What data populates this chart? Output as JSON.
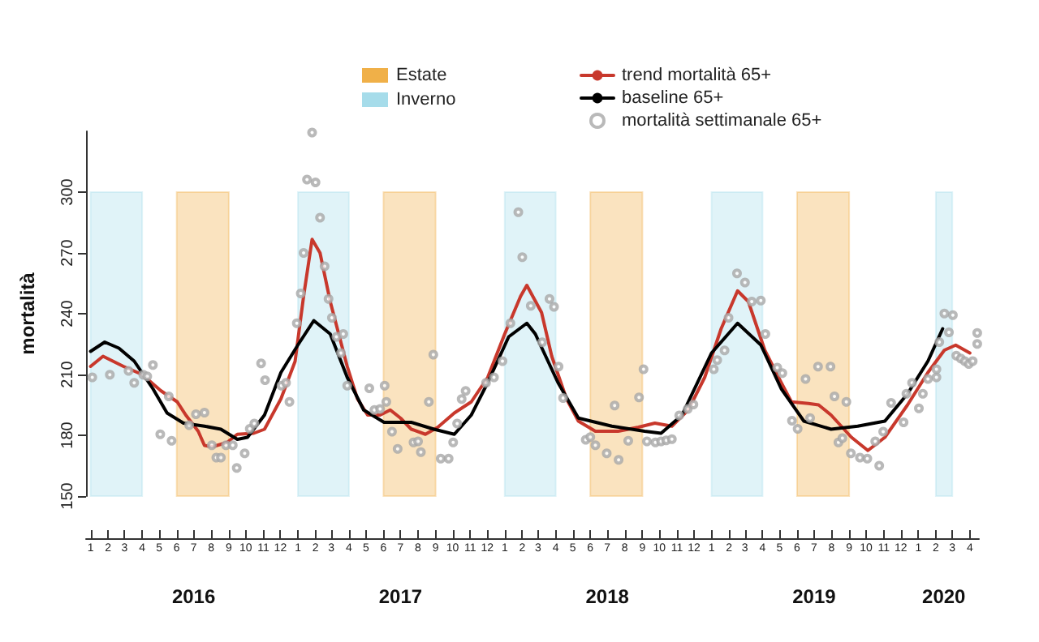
{
  "chart_data": {
    "type": "line",
    "ylabel": "mortalità",
    "xlim": [
      "2015-12-24",
      "2020-04-17"
    ],
    "ylim": [
      150,
      330
    ],
    "yticks": [
      150,
      180,
      210,
      240,
      270,
      300
    ],
    "xticks": [
      {
        "value": "2016-01-01",
        "label": "1"
      },
      {
        "value": "2016-02-01",
        "label": "2"
      },
      {
        "value": "2016-03-01",
        "label": "3"
      },
      {
        "value": "2016-04-01",
        "label": "4"
      },
      {
        "value": "2016-05-01",
        "label": "5"
      },
      {
        "value": "2016-06-01",
        "label": "6"
      },
      {
        "value": "2016-07-01",
        "label": "7"
      },
      {
        "value": "2016-08-01",
        "label": "8"
      },
      {
        "value": "2016-09-01",
        "label": "9"
      },
      {
        "value": "2016-10-01",
        "label": "10"
      },
      {
        "value": "2016-11-01",
        "label": "11"
      },
      {
        "value": "2016-12-01",
        "label": "12"
      },
      {
        "value": "2017-01-01",
        "label": "1"
      },
      {
        "value": "2017-02-01",
        "label": "2"
      },
      {
        "value": "2017-03-01",
        "label": "3"
      },
      {
        "value": "2017-04-01",
        "label": "4"
      },
      {
        "value": "2017-05-01",
        "label": "5"
      },
      {
        "value": "2017-06-01",
        "label": "6"
      },
      {
        "value": "2017-07-01",
        "label": "7"
      },
      {
        "value": "2017-08-01",
        "label": "8"
      },
      {
        "value": "2017-09-01",
        "label": "9"
      },
      {
        "value": "2017-10-01",
        "label": "10"
      },
      {
        "value": "2017-11-01",
        "label": "11"
      },
      {
        "value": "2017-12-01",
        "label": "12"
      },
      {
        "value": "2018-01-01",
        "label": "1"
      },
      {
        "value": "2018-02-01",
        "label": "2"
      },
      {
        "value": "2018-03-01",
        "label": "3"
      },
      {
        "value": "2018-04-01",
        "label": "4"
      },
      {
        "value": "2018-05-01",
        "label": "5"
      },
      {
        "value": "2018-06-01",
        "label": "6"
      },
      {
        "value": "2018-07-01",
        "label": "7"
      },
      {
        "value": "2018-08-01",
        "label": "8"
      },
      {
        "value": "2018-09-01",
        "label": "9"
      },
      {
        "value": "2018-10-01",
        "label": "10"
      },
      {
        "value": "2018-11-01",
        "label": "11"
      },
      {
        "value": "2018-12-01",
        "label": "12"
      },
      {
        "value": "2019-01-01",
        "label": "1"
      },
      {
        "value": "2019-02-01",
        "label": "2"
      },
      {
        "value": "2019-03-01",
        "label": "3"
      },
      {
        "value": "2019-04-01",
        "label": "4"
      },
      {
        "value": "2019-05-01",
        "label": "5"
      },
      {
        "value": "2019-06-01",
        "label": "6"
      },
      {
        "value": "2019-07-01",
        "label": "7"
      },
      {
        "value": "2019-08-01",
        "label": "8"
      },
      {
        "value": "2019-09-01",
        "label": "9"
      },
      {
        "value": "2019-10-01",
        "label": "10"
      },
      {
        "value": "2019-11-01",
        "label": "11"
      },
      {
        "value": "2019-12-01",
        "label": "12"
      },
      {
        "value": "2020-01-01",
        "label": "1"
      },
      {
        "value": "2020-02-01",
        "label": "2"
      },
      {
        "value": "2020-03-01",
        "label": "3"
      },
      {
        "value": "2020-04-01",
        "label": "4"
      }
    ],
    "x2lim": [
      "2015-12-24",
      "2020-04-17"
    ],
    "x2ticks": [
      {
        "value": "2016-07-01",
        "label": "2016"
      },
      {
        "value": "2017-07-01",
        "label": "2017"
      },
      {
        "value": "2018-07-01",
        "label": "2018"
      },
      {
        "value": "2019-07-01",
        "label": "2019"
      },
      {
        "value": "2020-02-15",
        "label": "2020"
      }
    ],
    "grid": false,
    "legend": "top",
    "line_style": "solid",
    "bands": [
      {
        "axis": "x",
        "from": "2016-06-01",
        "to": "2016-09-01",
        "label": "Estate",
        "color": "#f0b048"
      },
      {
        "axis": "x",
        "from": "2017-06-01",
        "to": "2017-09-01",
        "color": "#f0b048"
      },
      {
        "axis": "x",
        "from": "2018-06-01",
        "to": "2018-09-01",
        "color": "#f0b048"
      },
      {
        "axis": "x",
        "from": "2019-06-01",
        "to": "2019-09-01",
        "color": "#f0b048"
      },
      {
        "axis": "x",
        "from": "2016-01-01",
        "to": "2016-04-01",
        "label": "Inverno",
        "color": "#a6dcea"
      },
      {
        "axis": "x",
        "from": "2017-01-01",
        "to": "2017-04-01",
        "color": "#a6dcea"
      },
      {
        "axis": "x",
        "from": "2018-01-01",
        "to": "2018-04-01",
        "color": "#a6dcea"
      },
      {
        "axis": "x",
        "from": "2019-01-01",
        "to": "2019-04-01",
        "color": "#a6dcea"
      },
      {
        "axis": "x",
        "from": "2020-02-01",
        "to": "2020-03-01",
        "color": "#a6dcea"
      }
    ],
    "series": [
      {
        "name": "trend mortalità 65+",
        "marker": "none",
        "color": "#c8382c",
        "x": [
          "2016-01-01",
          "2016-01-23",
          "2016-02-28",
          "2016-04-01",
          "2016-05-04",
          "2016-06-02",
          "2016-06-17",
          "2016-07-09",
          "2016-07-20",
          "2016-08-03",
          "2016-08-29",
          "2016-09-16",
          "2016-10-15",
          "2016-11-03",
          "2016-12-02",
          "2016-12-27",
          "2017-01-11",
          "2017-01-26",
          "2017-02-09",
          "2017-02-27",
          "2017-03-29",
          "2017-04-16",
          "2017-05-04",
          "2017-05-26",
          "2017-06-13",
          "2017-07-01",
          "2017-07-20",
          "2017-08-14",
          "2017-09-05",
          "2017-10-04",
          "2017-11-03",
          "2017-12-02",
          "2018-01-01",
          "2018-01-29",
          "2018-02-09",
          "2018-03-07",
          "2018-03-25",
          "2018-04-20",
          "2018-05-11",
          "2018-06-10",
          "2018-07-20",
          "2018-08-25",
          "2018-09-23",
          "2018-10-23",
          "2018-11-21",
          "2018-12-20",
          "2019-01-18",
          "2019-02-16",
          "2019-03-07",
          "2019-04-05",
          "2019-05-04",
          "2019-05-22",
          "2019-06-21",
          "2019-07-09",
          "2019-07-31",
          "2019-09-05",
          "2019-10-04",
          "2019-11-03",
          "2019-12-13",
          "2020-01-18",
          "2020-02-16",
          "2020-03-07",
          "2020-04-01"
        ],
        "values": [
          214,
          219,
          214,
          210,
          202,
          196.5,
          190,
          182,
          175,
          174.3,
          176.5,
          180.5,
          181,
          183,
          198,
          216.5,
          248.6,
          276.7,
          270,
          246,
          214,
          198,
          190,
          190,
          192.5,
          188.5,
          183,
          180.5,
          184,
          191,
          196.5,
          208.6,
          230,
          248.6,
          254,
          240.6,
          219,
          198,
          187,
          182,
          182,
          184,
          186,
          184.5,
          192.5,
          208.6,
          232.6,
          251.3,
          246,
          222,
          206,
          196.5,
          195.7,
          195,
          190,
          179,
          172.5,
          179,
          195,
          211,
          222,
          224.5,
          220.6
        ]
      },
      {
        "name": "baseline 65+",
        "marker": "none",
        "color": "#000000",
        "x": [
          "2016-01-01",
          "2016-01-26",
          "2016-02-20",
          "2016-03-18",
          "2016-04-20",
          "2016-05-15",
          "2016-06-13",
          "2016-07-20",
          "2016-08-18",
          "2016-09-16",
          "2016-10-04",
          "2016-11-03",
          "2016-12-02",
          "2017-01-01",
          "2017-01-29",
          "2017-02-27",
          "2017-03-29",
          "2017-04-27",
          "2017-06-02",
          "2017-07-20",
          "2017-08-29",
          "2017-10-04",
          "2017-11-03",
          "2017-12-02",
          "2018-01-08",
          "2018-02-09",
          "2018-02-24",
          "2018-04-05",
          "2018-05-11",
          "2018-07-09",
          "2018-09-05",
          "2018-10-04",
          "2018-11-10",
          "2019-01-01",
          "2019-02-16",
          "2019-03-29",
          "2019-05-04",
          "2019-06-13",
          "2019-07-31",
          "2019-09-16",
          "2019-11-03",
          "2019-12-13",
          "2020-01-18",
          "2020-02-13"
        ],
        "values": [
          221.4,
          226,
          223,
          216.6,
          203,
          191,
          186,
          184.5,
          183,
          178,
          179,
          190,
          211,
          224.6,
          236.6,
          230,
          208.6,
          192.5,
          186.4,
          186.4,
          183,
          180.5,
          190,
          206,
          228.6,
          235.3,
          230,
          206,
          188.5,
          184.5,
          182,
          181,
          190,
          220.6,
          235.3,
          224.6,
          203,
          187,
          183,
          184.5,
          187,
          200.5,
          216.6,
          232.6
        ]
      },
      {
        "name": "mortalità settimanale 65+",
        "type": "scatter",
        "marker": "circle",
        "color": "#a8a8a8",
        "x": [
          "2016-01-04",
          "2016-02-04",
          "2016-03-08",
          "2016-03-18",
          "2016-04-03",
          "2016-04-10",
          "2016-04-20",
          "2016-05-03",
          "2016-05-18",
          "2016-05-23",
          "2016-06-23",
          "2016-07-05",
          "2016-07-20",
          "2016-08-02",
          "2016-08-10",
          "2016-08-18",
          "2016-08-27",
          "2016-09-08",
          "2016-09-15",
          "2016-09-29",
          "2016-10-08",
          "2016-10-16",
          "2016-10-28",
          "2016-11-04",
          "2016-12-03",
          "2016-12-11",
          "2016-12-17",
          "2016-12-30",
          "2017-01-06",
          "2017-01-11",
          "2017-01-17",
          "2017-02-01",
          "2017-01-26",
          "2017-02-09",
          "2017-02-17",
          "2017-02-24",
          "2017-03-02",
          "2017-03-10",
          "2017-03-18",
          "2017-03-22",
          "2017-03-29",
          "2017-05-07",
          "2017-05-16",
          "2017-05-26",
          "2017-06-03",
          "2017-06-06",
          "2017-06-16",
          "2017-06-26",
          "2017-07-24",
          "2017-08-01",
          "2017-08-06",
          "2017-08-20",
          "2017-08-28",
          "2017-09-10",
          "2017-09-24",
          "2017-10-02",
          "2017-10-09",
          "2017-10-17",
          "2017-10-24",
          "2017-11-29",
          "2017-12-13",
          "2017-12-28",
          "2018-01-11",
          "2018-01-25",
          "2018-02-01",
          "2018-02-16",
          "2018-03-08",
          "2018-03-21",
          "2018-03-29",
          "2018-04-06",
          "2018-04-14",
          "2018-05-24",
          "2018-06-01",
          "2018-06-10",
          "2018-06-30",
          "2018-07-14",
          "2018-07-21",
          "2018-08-07",
          "2018-08-26",
          "2018-09-03",
          "2018-09-09",
          "2018-09-24",
          "2018-10-04",
          "2018-10-13",
          "2018-10-23",
          "2018-11-05",
          "2018-11-20",
          "2018-11-30",
          "2019-01-05",
          "2019-01-11",
          "2019-01-24",
          "2019-01-31",
          "2019-02-15",
          "2019-03-01",
          "2019-03-13",
          "2019-03-29",
          "2019-04-06",
          "2019-04-27",
          "2019-05-06",
          "2019-05-23",
          "2019-06-02",
          "2019-06-16",
          "2019-06-24",
          "2019-07-08",
          "2019-07-30",
          "2019-08-06",
          "2019-08-13",
          "2019-08-20",
          "2019-08-27",
          "2019-09-04",
          "2019-09-20",
          "2019-10-03",
          "2019-10-17",
          "2019-10-24",
          "2019-10-31",
          "2019-11-14",
          "2019-12-06",
          "2019-12-11",
          "2019-12-21",
          "2020-01-02",
          "2020-01-09",
          "2020-01-18",
          "2020-02-02",
          "2020-02-02",
          "2020-02-07",
          "2020-02-16",
          "2020-02-24",
          "2020-03-02",
          "2020-03-08",
          "2020-03-16",
          "2020-03-23",
          "2020-03-30",
          "2020-04-06",
          "2020-04-14",
          "2020-04-14"
        ],
        "values": [
          208.6,
          209.9,
          211.8,
          205.9,
          209.9,
          209.1,
          214.7,
          180.5,
          199.2,
          177.3,
          185,
          190.4,
          191.2,
          175.1,
          169,
          169,
          175.1,
          175.1,
          163.9,
          171.1,
          183.2,
          185.8,
          215.5,
          207.2,
          204.5,
          205.9,
          196.5,
          235.3,
          250,
          270,
          306.2,
          304.8,
          329.4,
          287.4,
          263.4,
          247.3,
          238,
          228.6,
          220.6,
          230,
          204.5,
          203.2,
          192.5,
          193,
          204.5,
          196.5,
          181.8,
          173.3,
          176.5,
          177,
          171.7,
          196.5,
          219.8,
          168.5,
          168.5,
          176.5,
          185.8,
          197.9,
          201.9,
          205.9,
          208.6,
          216.6,
          235.3,
          290.1,
          267.9,
          243.9,
          225.9,
          247.3,
          243.4,
          213.9,
          198.4,
          177.8,
          179.1,
          175.1,
          171.1,
          194.7,
          167.9,
          177.3,
          198.7,
          212.6,
          177,
          176.5,
          177,
          177.5,
          178.1,
          189.8,
          193,
          195.2,
          212.6,
          217.1,
          221.9,
          238,
          259.9,
          255.4,
          246,
          246.5,
          230,
          213.4,
          210.7,
          187.2,
          183.2,
          207.8,
          188.5,
          213.9,
          213.9,
          199.2,
          176.5,
          178.6,
          196.5,
          171.1,
          169,
          168.5,
          177,
          165,
          181.8,
          196,
          186.4,
          200.5,
          205.9,
          193.3,
          200.5,
          207.8,
          208.6,
          212.6,
          226,
          240.1,
          230.8,
          239.3,
          219.3,
          217.9,
          216.6,
          215.2,
          216.6,
          230.5,
          225.1
        ]
      }
    ]
  }
}
